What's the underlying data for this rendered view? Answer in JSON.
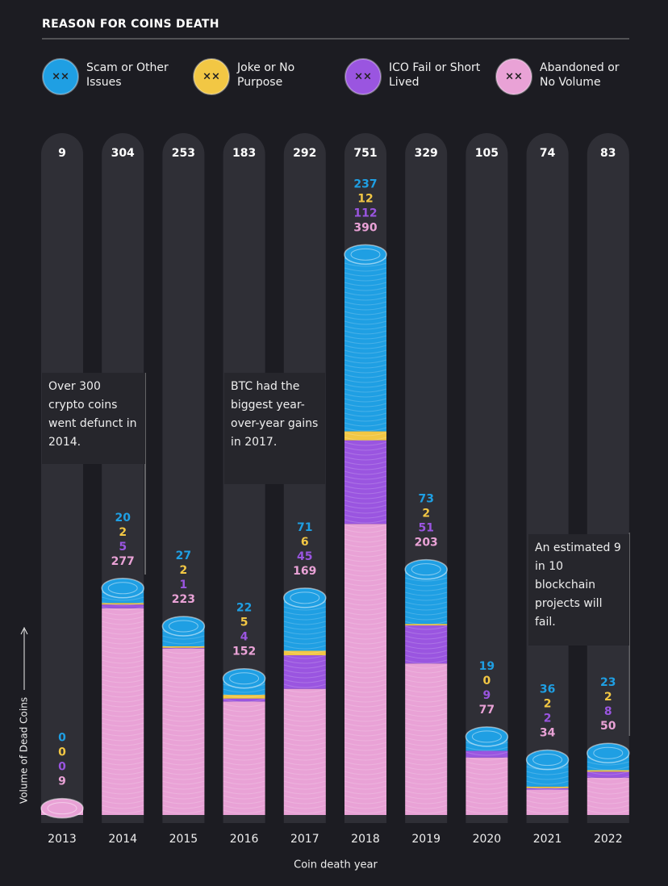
{
  "chart_data": {
    "type": "bar",
    "stacked": true,
    "title": "REASON FOR COINS DEATH",
    "xlabel": "Coin death year",
    "ylabel": "Volume of Dead Coins",
    "categories": [
      "2013",
      "2014",
      "2015",
      "2016",
      "2017",
      "2018",
      "2019",
      "2020",
      "2021",
      "2022"
    ],
    "totals": [
      9,
      304,
      253,
      183,
      292,
      751,
      329,
      105,
      74,
      83
    ],
    "series": [
      {
        "name": "Scam or Other Issues",
        "color": "#1f9fe3",
        "values": [
          0,
          20,
          27,
          22,
          71,
          237,
          73,
          19,
          36,
          23
        ]
      },
      {
        "name": "Joke or No Purpose",
        "color": "#f2c744",
        "values": [
          0,
          2,
          2,
          5,
          6,
          12,
          2,
          0,
          2,
          2
        ]
      },
      {
        "name": "ICO Fail or Short Lived",
        "color": "#9a55e0",
        "values": [
          0,
          5,
          1,
          4,
          45,
          112,
          51,
          9,
          2,
          8
        ]
      },
      {
        "name": "Abandoned or No Volume",
        "color": "#e9a2d6",
        "values": [
          9,
          277,
          223,
          152,
          169,
          390,
          203,
          77,
          34,
          50
        ]
      }
    ],
    "annotations": [
      "Over 300 crypto coins went defunct in 2014.",
      "BTC had the biggest year-over-year gains in 2017.",
      "An estimated 9 in 10 blockchain projects will fail."
    ]
  }
}
